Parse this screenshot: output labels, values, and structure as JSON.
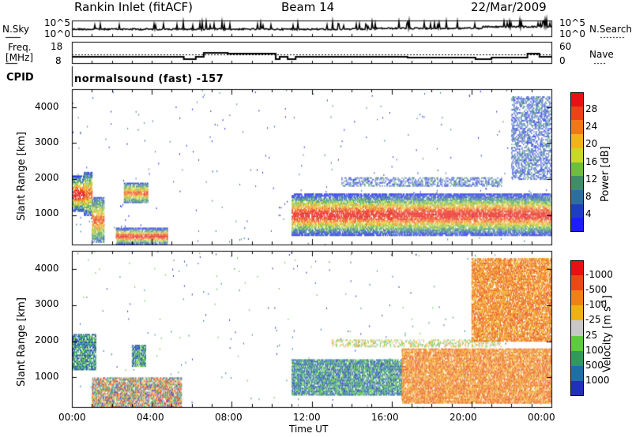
{
  "header": {
    "station": "Rankin Inlet (fitACF)",
    "beam": "Beam 14",
    "date": "22/Mar/2009"
  },
  "noise_panel": {
    "left_label": "N.Sky",
    "left_ticks": [
      "10^5",
      "10^0"
    ],
    "right_label": "N.Search",
    "right_ticks": [
      "10^5",
      "10^0"
    ]
  },
  "freq_panel": {
    "left_label_line1": "Freq.",
    "left_label_line2": "[MHz]",
    "left_ticks": [
      "18",
      "8"
    ],
    "right_label": "Nave",
    "right_ticks": [
      "60",
      "0"
    ]
  },
  "cpid_panel": {
    "label": "CPID",
    "mode_text": "normalsound (fast) -157"
  },
  "time_axis": {
    "label": "Time UT",
    "ticks": [
      "00:00",
      "04:00",
      "08:00",
      "12:00",
      "16:00",
      "20:00",
      "00:00"
    ]
  },
  "chart_data": [
    {
      "type": "heatmap",
      "title": "",
      "xlabel": "Time UT",
      "ylabel": "Slant Range [km]",
      "y_ticks": [
        "1000",
        "2000",
        "3000",
        "4000"
      ],
      "x_range_hours": [
        0,
        24
      ],
      "y_range_km": [
        180,
        4500
      ],
      "colorbar": {
        "label": "Power [dB]",
        "tick_labels": [
          "4",
          "8",
          "12",
          "16",
          "20",
          "24",
          "28"
        ],
        "colors": [
          "#1c1cff",
          "#1d3fbf",
          "#2b6fa0",
          "#3e8f67",
          "#6bbf3c",
          "#c8d82a",
          "#f2b21e",
          "#f07818",
          "#e84414",
          "#e81212"
        ]
      },
      "echo_regions": [
        {
          "t": [
            0.0,
            0.6
          ],
          "r": [
            1100,
            2100
          ],
          "level": "high"
        },
        {
          "t": [
            0.6,
            1.0
          ],
          "r": [
            1000,
            2200
          ],
          "level": "medium"
        },
        {
          "t": [
            1.0,
            1.6
          ],
          "r": [
            250,
            1500
          ],
          "level": "medium"
        },
        {
          "t": [
            2.2,
            4.8
          ],
          "r": [
            200,
            650
          ],
          "level": "high"
        },
        {
          "t": [
            2.6,
            3.8
          ],
          "r": [
            1350,
            1900
          ],
          "level": "medium"
        },
        {
          "t": [
            11.0,
            16.0
          ],
          "r": [
            450,
            1600
          ],
          "level": "high"
        },
        {
          "t": [
            16.0,
            24.0
          ],
          "r": [
            450,
            1600
          ],
          "level": "high"
        },
        {
          "t": [
            13.5,
            21.5
          ],
          "r": [
            1800,
            2050
          ],
          "level": "low"
        },
        {
          "t": [
            22.0,
            24.0
          ],
          "r": [
            2000,
            4300
          ],
          "level": "low"
        }
      ]
    },
    {
      "type": "heatmap",
      "title": "",
      "xlabel": "Time UT",
      "ylabel": "Slant Range [km]",
      "y_ticks": [
        "1000",
        "2000",
        "3000",
        "4000"
      ],
      "x_range_hours": [
        0,
        24
      ],
      "y_range_km": [
        180,
        4500
      ],
      "colorbar": {
        "label": "Velocity [m s-1]",
        "label_main": "Velocity  [m s",
        "label_sup": "-1",
        "label_end": "]",
        "tick_labels": [
          "1000",
          "500",
          "100",
          "25",
          "-25",
          "-100",
          "-500",
          "-1000"
        ],
        "colors": [
          "#2030b8",
          "#1d6fa8",
          "#2f9a5c",
          "#5ccc3a",
          "#c8c8c8",
          "#f0b018",
          "#f08018",
          "#e84a14",
          "#e81010"
        ]
      },
      "echo_regions": [
        {
          "t": [
            0.0,
            1.2
          ],
          "r": [
            1200,
            2200
          ],
          "sign": "positive"
        },
        {
          "t": [
            1.0,
            5.5
          ],
          "r": [
            200,
            1000
          ],
          "sign": "mixed"
        },
        {
          "t": [
            3.0,
            3.7
          ],
          "r": [
            1300,
            1900
          ],
          "sign": "positive"
        },
        {
          "t": [
            11.0,
            16.5
          ],
          "r": [
            500,
            1500
          ],
          "sign": "positive"
        },
        {
          "t": [
            13.0,
            21.5
          ],
          "r": [
            1850,
            2050
          ],
          "sign": "near-zero"
        },
        {
          "t": [
            16.5,
            24.0
          ],
          "r": [
            300,
            1800
          ],
          "sign": "negative"
        },
        {
          "t": [
            20.0,
            24.0
          ],
          "r": [
            2000,
            4300
          ],
          "sign": "negative"
        }
      ]
    }
  ]
}
